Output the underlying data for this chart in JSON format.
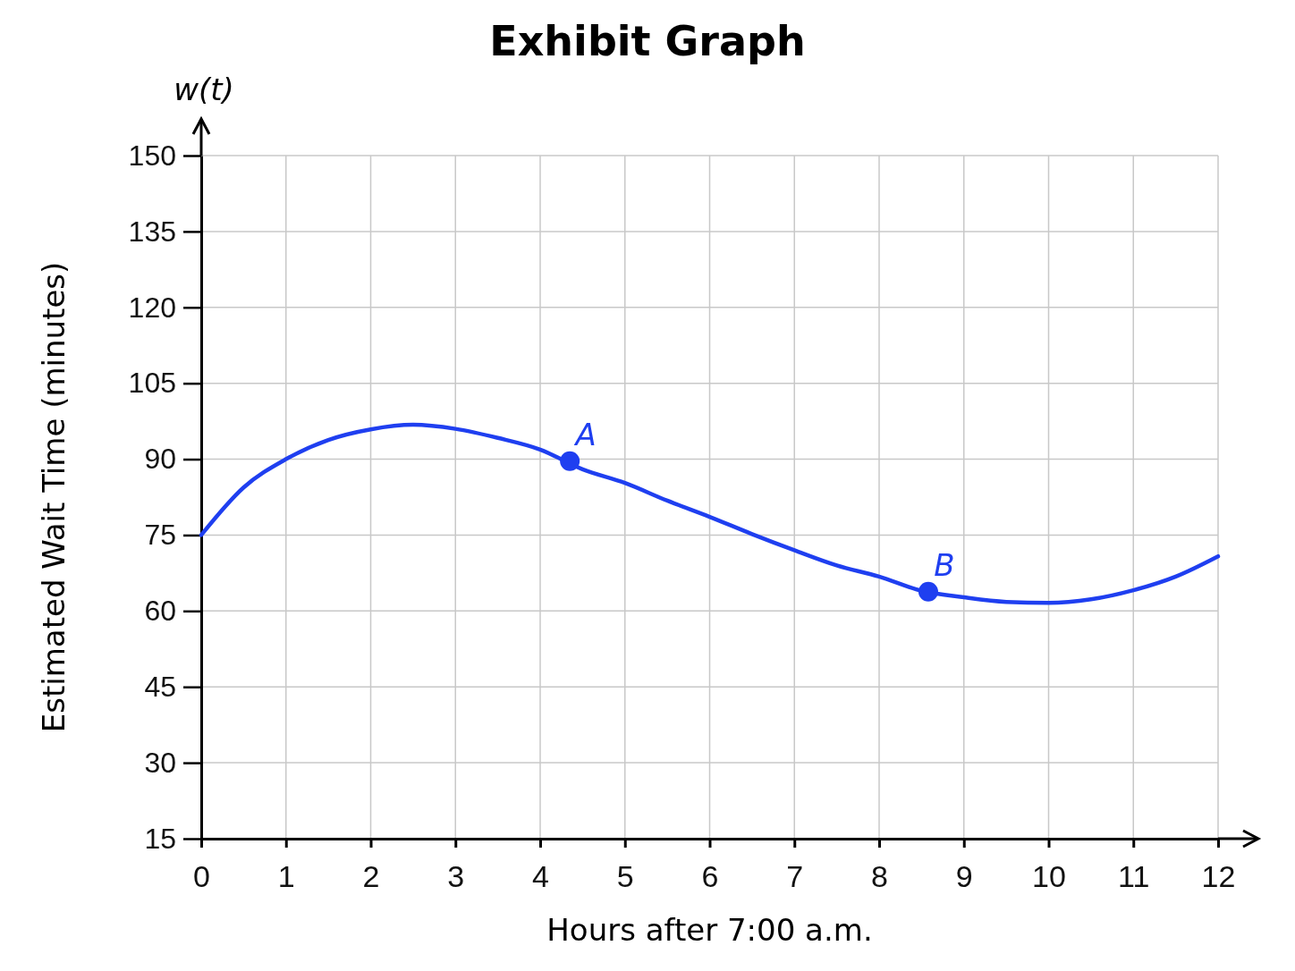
{
  "chart_data": {
    "type": "line",
    "title": "Exhibit Graph",
    "xlabel": "Hours after 7:00 a.m.",
    "ylabel": "Estimated Wait Time (minutes)",
    "annotations": [
      "w(t)",
      {
        "text": "A",
        "x": 4.35,
        "y": 89.6
      },
      {
        "text": "B",
        "x": 8.58,
        "y": 63.8
      }
    ],
    "xlim": [
      0,
      12
    ],
    "xticks": [
      0,
      1,
      2,
      3,
      4,
      5,
      6,
      7,
      8,
      9,
      10,
      11,
      12
    ],
    "ylim": [
      15,
      150
    ],
    "yticks": [
      15,
      30,
      45,
      60,
      75,
      90,
      105,
      120,
      135,
      150
    ],
    "grid": true,
    "line_style": "solid",
    "series": [
      {
        "type": "line",
        "color": "#1f3ff0",
        "marker": "none",
        "x": [
          0,
          0.5,
          1,
          1.5,
          2,
          2.5,
          3,
          3.5,
          4,
          4.5,
          5,
          5.5,
          6,
          6.5,
          7,
          7.5,
          8,
          8.5,
          9,
          9.5,
          10,
          10.5,
          11,
          11.5,
          12
        ],
        "values": [
          75,
          84.4,
          90,
          93.8,
          95.9,
          96.8,
          96,
          94.2,
          91.9,
          88,
          85.3,
          81.8,
          78.6,
          75.2,
          72,
          69,
          66.8,
          64,
          62.7,
          61.8,
          61.6,
          62.3,
          64.1,
          66.8,
          70.8
        ]
      },
      {
        "type": "scatter",
        "color": "#1f3ff0",
        "marker": "circle",
        "x": [
          4.35,
          8.58
        ],
        "values": [
          89.6,
          63.8
        ]
      }
    ]
  }
}
